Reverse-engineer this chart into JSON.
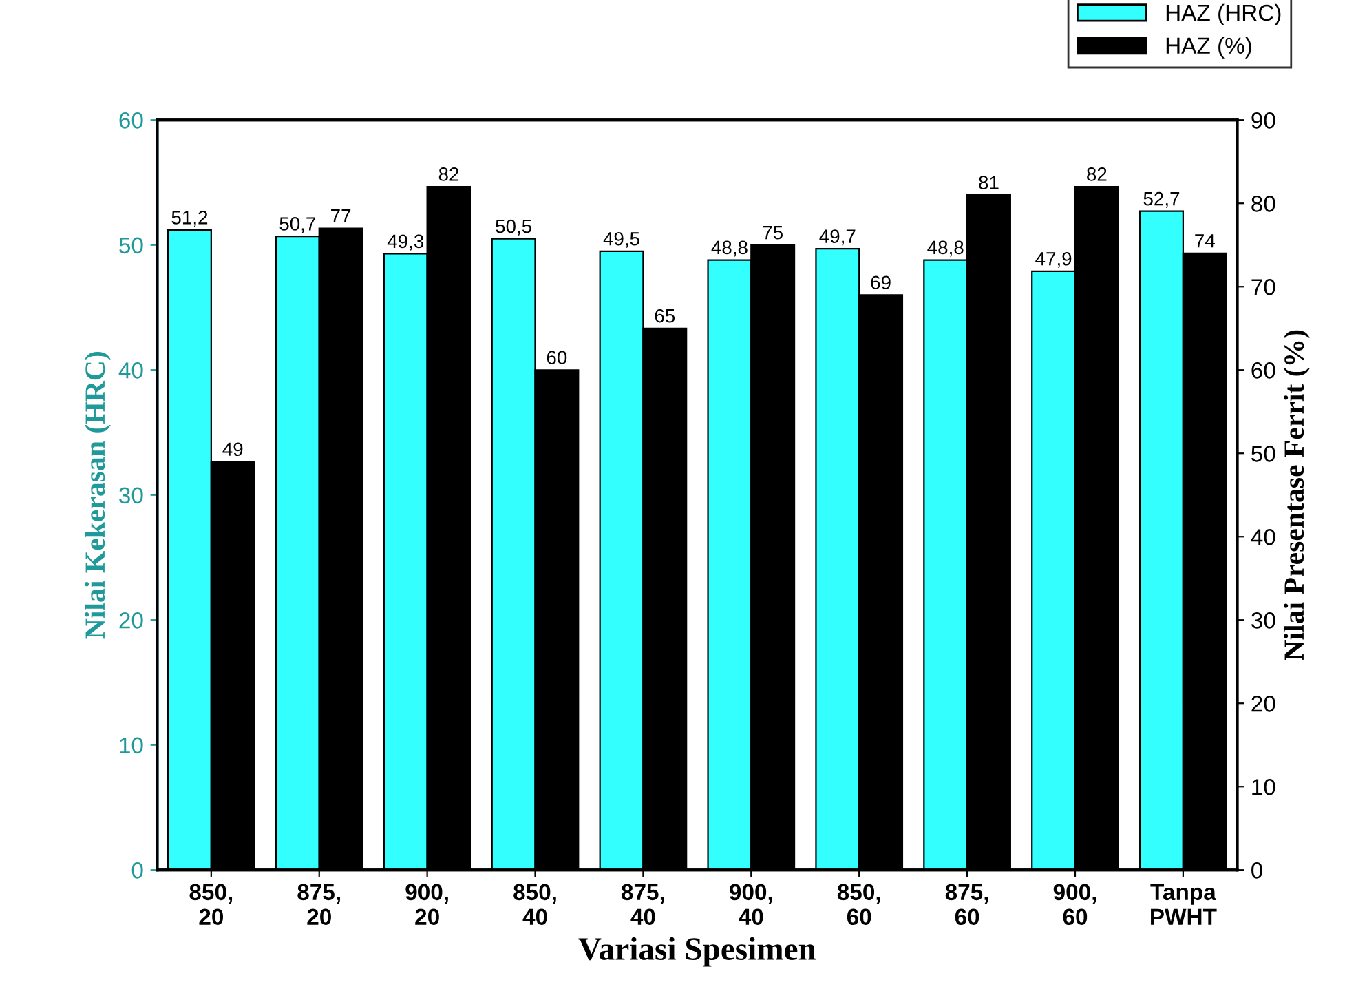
{
  "chart_data": {
    "type": "bar",
    "xlabel": "Variasi Spesimen",
    "ylabel": "Nilai Kekerasan (HRC)",
    "y2label": "Nilai Presentase Ferrit (%)",
    "categories": [
      "850,\n20",
      "875,\n20",
      "900,\n20",
      "850,\n40",
      "875,\n40",
      "900,\n40",
      "850,\n60",
      "875,\n60",
      "900,\n60",
      "Tanpa\nPWHT"
    ],
    "series": [
      {
        "name": "HAZ (HRC)",
        "color": "#33ffff",
        "values": [
          51.2,
          50.7,
          49.3,
          50.5,
          49.5,
          48.8,
          49.7,
          48.8,
          47.9,
          52.7
        ],
        "value_labels": [
          "51,2",
          "50,7",
          "49,3",
          "50,5",
          "49,5",
          "48,8",
          "49,7",
          "48,8",
          "47,9",
          "52,7"
        ]
      },
      {
        "name": "HAZ (%)",
        "color": "#000000",
        "axis": "y2",
        "values": [
          49,
          77,
          82,
          60,
          65,
          75,
          69,
          81,
          82,
          74
        ],
        "value_labels": [
          "49",
          "77",
          "82",
          "60",
          "65",
          "75",
          "69",
          "81",
          "82",
          "74"
        ]
      }
    ],
    "ylim": [
      0,
      60
    ],
    "yticks": [
      0,
      10,
      20,
      30,
      40,
      50,
      60
    ],
    "y2lim": [
      0,
      90
    ],
    "y2ticks": [
      0,
      10,
      20,
      30,
      40,
      50,
      60,
      70,
      80,
      90
    ],
    "grid": false,
    "legend": "top right"
  }
}
